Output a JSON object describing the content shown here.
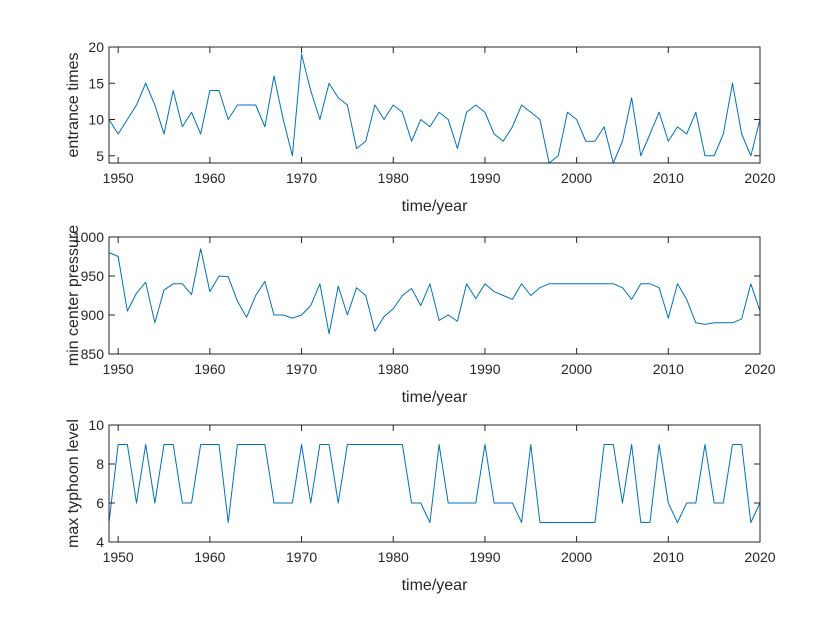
{
  "colors": {
    "line": "#0072BD",
    "axes": "#262626",
    "background": "#ffffff"
  },
  "chart_data": [
    {
      "type": "line",
      "xlabel": "time/year",
      "ylabel": "entrance times",
      "xlim": [
        1949,
        2020
      ],
      "ylim": [
        4,
        20
      ],
      "xticks": [
        1950,
        1960,
        1970,
        1980,
        1990,
        2000,
        2010,
        2020
      ],
      "yticks": [
        5,
        10,
        15,
        20
      ],
      "grid": false,
      "series": [
        {
          "x": [
            1949,
            1950,
            1951,
            1952,
            1953,
            1954,
            1955,
            1956,
            1957,
            1958,
            1959,
            1960,
            1961,
            1962,
            1963,
            1964,
            1965,
            1966,
            1967,
            1968,
            1969,
            1970,
            1971,
            1972,
            1973,
            1974,
            1975,
            1976,
            1977,
            1978,
            1979,
            1980,
            1981,
            1982,
            1983,
            1984,
            1985,
            1986,
            1987,
            1988,
            1989,
            1990,
            1991,
            1992,
            1993,
            1994,
            1995,
            1996,
            1997,
            1998,
            1999,
            2000,
            2001,
            2002,
            2003,
            2004,
            2005,
            2006,
            2007,
            2008,
            2009,
            2010,
            2011,
            2012,
            2013,
            2014,
            2015,
            2016,
            2017,
            2018,
            2019,
            2020
          ],
          "y": [
            10,
            8,
            10,
            12,
            15,
            12,
            8,
            14,
            9,
            11,
            8,
            14,
            14,
            10,
            12,
            12,
            12,
            9,
            16,
            10,
            5,
            19,
            14,
            10,
            15,
            13,
            12,
            6,
            7,
            12,
            10,
            12,
            11,
            7,
            10,
            9,
            11,
            10,
            6,
            11,
            12,
            11,
            8,
            7,
            9,
            12,
            11,
            10,
            4,
            5,
            11,
            10,
            7,
            7,
            9,
            4,
            7,
            13,
            5,
            8,
            11,
            7,
            9,
            8,
            11,
            5,
            5,
            8,
            15,
            8,
            5,
            10
          ]
        }
      ]
    },
    {
      "type": "line",
      "xlabel": "time/year",
      "ylabel": "min center pressure",
      "xlim": [
        1949,
        2020
      ],
      "ylim": [
        850,
        1000
      ],
      "xticks": [
        1950,
        1960,
        1970,
        1980,
        1990,
        2000,
        2010,
        2020
      ],
      "yticks": [
        850,
        900,
        950,
        1000
      ],
      "grid": false,
      "series": [
        {
          "x": [
            1949,
            1950,
            1951,
            1952,
            1953,
            1954,
            1955,
            1956,
            1957,
            1958,
            1959,
            1960,
            1961,
            1962,
            1963,
            1964,
            1965,
            1966,
            1967,
            1968,
            1969,
            1970,
            1971,
            1972,
            1973,
            1974,
            1975,
            1976,
            1977,
            1978,
            1979,
            1980,
            1981,
            1982,
            1983,
            1984,
            1985,
            1986,
            1987,
            1988,
            1989,
            1990,
            1991,
            1992,
            1993,
            1994,
            1995,
            1996,
            1997,
            1998,
            1999,
            2000,
            2001,
            2002,
            2003,
            2004,
            2005,
            2006,
            2007,
            2008,
            2009,
            2010,
            2011,
            2012,
            2013,
            2014,
            2015,
            2016,
            2017,
            2018,
            2019,
            2020
          ],
          "y": [
            980,
            975,
            905,
            928,
            942,
            890,
            932,
            940,
            940,
            926,
            985,
            930,
            950,
            949,
            918,
            897,
            925,
            943,
            900,
            900,
            896,
            900,
            912,
            940,
            876,
            937,
            900,
            935,
            925,
            879,
            898,
            908,
            925,
            934,
            912,
            940,
            893,
            900,
            892,
            940,
            921,
            940,
            930,
            925,
            920,
            940,
            925,
            935,
            940,
            940,
            940,
            940,
            940,
            940,
            940,
            940,
            935,
            920,
            940,
            940,
            935,
            896,
            940,
            920,
            890,
            888,
            890,
            890,
            890,
            895,
            940,
            905
          ]
        }
      ]
    },
    {
      "type": "line",
      "xlabel": "time/year",
      "ylabel": "max typhoon level",
      "xlim": [
        1949,
        2020
      ],
      "ylim": [
        4,
        10
      ],
      "xticks": [
        1950,
        1960,
        1970,
        1980,
        1990,
        2000,
        2010,
        2020
      ],
      "yticks": [
        4,
        6,
        8,
        10
      ],
      "grid": false,
      "series": [
        {
          "x": [
            1949,
            1950,
            1951,
            1952,
            1953,
            1954,
            1955,
            1956,
            1957,
            1958,
            1959,
            1960,
            1961,
            1962,
            1963,
            1964,
            1965,
            1966,
            1967,
            1968,
            1969,
            1970,
            1971,
            1972,
            1973,
            1974,
            1975,
            1976,
            1977,
            1978,
            1979,
            1980,
            1981,
            1982,
            1983,
            1984,
            1985,
            1986,
            1987,
            1988,
            1989,
            1990,
            1991,
            1992,
            1993,
            1994,
            1995,
            1996,
            1997,
            1998,
            1999,
            2000,
            2001,
            2002,
            2003,
            2004,
            2005,
            2006,
            2007,
            2008,
            2009,
            2010,
            2011,
            2012,
            2013,
            2014,
            2015,
            2016,
            2017,
            2018,
            2019,
            2020
          ],
          "y": [
            5,
            9,
            9,
            6,
            9,
            6,
            9,
            9,
            6,
            6,
            9,
            9,
            9,
            5,
            9,
            9,
            9,
            9,
            6,
            6,
            6,
            9,
            6,
            9,
            9,
            6,
            9,
            9,
            9,
            9,
            9,
            9,
            9,
            6,
            6,
            5,
            9,
            6,
            6,
            6,
            6,
            9,
            6,
            6,
            6,
            5,
            9,
            5,
            5,
            5,
            5,
            5,
            5,
            5,
            9,
            9,
            6,
            9,
            5,
            5,
            9,
            6,
            5,
            6,
            6,
            9,
            6,
            6,
            9,
            9,
            5,
            6
          ]
        }
      ]
    }
  ]
}
